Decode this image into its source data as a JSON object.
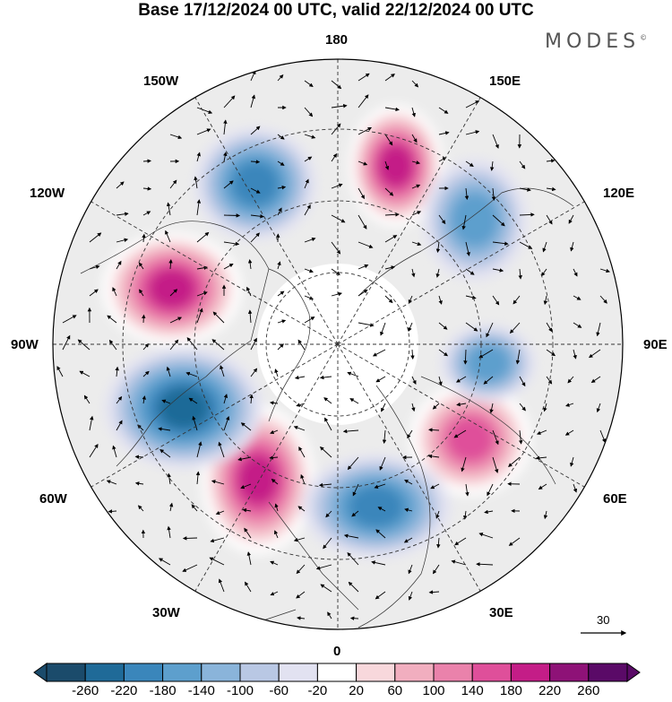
{
  "title": "Base 17/12/2024 00 UTC, valid 22/12/2024 00 UTC",
  "brand": "MODES",
  "brand_mark": "©",
  "longitude_labels": {
    "top": "180",
    "bottom": "0",
    "left": "90W",
    "right": "90E",
    "nw_upper": "150W",
    "nw_lower": "120W",
    "ne_upper": "150E",
    "ne_lower": "120E",
    "sw_upper": "60W",
    "sw_lower": "30W",
    "se_upper": "60E",
    "se_lower": "30E"
  },
  "reference_vector": "30",
  "colorbar": {
    "ticks": [
      "-260",
      "-220",
      "-180",
      "-140",
      "-100",
      "-60",
      "-20",
      "20",
      "60",
      "100",
      "140",
      "180",
      "220",
      "260"
    ],
    "colors": [
      "#1b4b6b",
      "#1f6a98",
      "#3a86bb",
      "#5d9fcd",
      "#8ab4da",
      "#b9c8e4",
      "#e2e2f1",
      "#ffffff",
      "#f8d8dc",
      "#f1aebf",
      "#ea82ab",
      "#df4f9a",
      "#c41d87",
      "#8e1277",
      "#5a0a67"
    ]
  },
  "anomaly_centres": [
    {
      "name": "positive-nw",
      "value": 220
    },
    {
      "name": "positive-n",
      "value": 220
    },
    {
      "name": "positive-sw",
      "value": 220
    },
    {
      "name": "positive-se",
      "value": 180
    },
    {
      "name": "negative-n-west",
      "value": -180
    },
    {
      "name": "negative-n-east",
      "value": -140
    },
    {
      "name": "negative-w",
      "value": -220
    },
    {
      "name": "negative-s",
      "value": -180
    },
    {
      "name": "negative-e",
      "value": -140
    }
  ]
}
